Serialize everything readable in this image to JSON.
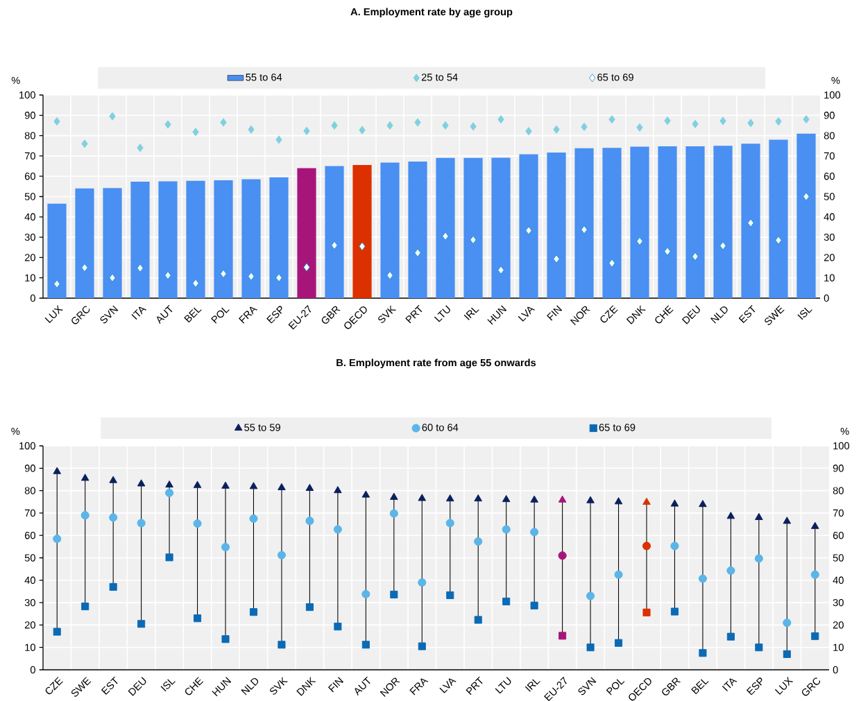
{
  "chart_data": [
    {
      "type": "bar",
      "title": "A. Employment rate by age group",
      "ylabel": "%",
      "y2label": "%",
      "categories": [
        "LUX",
        "GRC",
        "SVN",
        "ITA",
        "AUT",
        "BEL",
        "POL",
        "FRA",
        "ESP",
        "EU-27",
        "GBR",
        "OECD",
        "SVK",
        "PRT",
        "LTU",
        "IRL",
        "HUN",
        "LVA",
        "FIN",
        "NOR",
        "CZE",
        "DNK",
        "CHE",
        "DEU",
        "NLD",
        "EST",
        "SWE",
        "ISL"
      ],
      "series": [
        {
          "name": "55 to 64",
          "type": "bar",
          "color": "#4a8ff2",
          "colors": [
            "#4a8ff2",
            "#4a8ff2",
            "#4a8ff2",
            "#4a8ff2",
            "#4a8ff2",
            "#4a8ff2",
            "#4a8ff2",
            "#4a8ff2",
            "#4a8ff2",
            "#a8157a",
            "#4a8ff2",
            "#dc3000",
            "#4a8ff2",
            "#4a8ff2",
            "#4a8ff2",
            "#4a8ff2",
            "#4a8ff2",
            "#4a8ff2",
            "#4a8ff2",
            "#4a8ff2",
            "#4a8ff2",
            "#4a8ff2",
            "#4a8ff2",
            "#4a8ff2",
            "#4a8ff2",
            "#4a8ff2",
            "#4a8ff2",
            "#4a8ff2"
          ],
          "values": [
            46.5,
            54,
            54.2,
            57.3,
            57.5,
            57.8,
            58,
            58.5,
            59.5,
            64,
            65,
            65.5,
            66.7,
            67.2,
            69,
            69,
            69.1,
            70.8,
            71.7,
            73.8,
            74,
            74.6,
            74.7,
            74.7,
            75,
            76,
            78,
            81
          ]
        },
        {
          "name": "25 to 54",
          "type": "scatter",
          "marker": "diamond",
          "color": "#7fd0e0",
          "values": [
            87,
            76,
            89.5,
            74,
            85.5,
            81.8,
            86.5,
            83,
            78,
            82.3,
            85,
            82.7,
            85,
            86.5,
            85,
            84.5,
            88,
            82.2,
            83,
            84.3,
            88,
            84,
            87.3,
            85.7,
            87.2,
            86.2,
            87,
            88
          ]
        },
        {
          "name": "65 to 69",
          "type": "scatter",
          "marker": "diamond",
          "color": "#ffffff",
          "values": [
            7,
            15,
            10,
            14.8,
            11.2,
            7.3,
            12,
            10.7,
            10,
            15.2,
            26,
            25.5,
            11.2,
            22.3,
            30.5,
            28.7,
            13.8,
            33.3,
            19.3,
            33.7,
            17.2,
            28,
            23,
            20.5,
            25.8,
            37,
            28.5,
            50
          ]
        }
      ],
      "ylim": [
        0,
        100
      ],
      "yticks": [
        0,
        10,
        20,
        30,
        40,
        50,
        60,
        70,
        80,
        90,
        100
      ],
      "y2lim": [
        0,
        100
      ],
      "y2ticks": [
        0,
        10,
        20,
        30,
        40,
        50,
        60,
        70,
        80,
        90,
        100
      ],
      "grid": true,
      "legend": "top"
    },
    {
      "type": "scatter",
      "title": "B. Employment rate from age 55 onwards",
      "ylabel": "%",
      "y2label": "%",
      "categories": [
        "CZE",
        "SWE",
        "EST",
        "DEU",
        "ISL",
        "CHE",
        "HUN",
        "NLD",
        "SVK",
        "DNK",
        "FIN",
        "AUT",
        "NOR",
        "FRA",
        "LVA",
        "PRT",
        "LTU",
        "IRL",
        "EU-27",
        "SVN",
        "POL",
        "OECD",
        "GBR",
        "BEL",
        "ITA",
        "ESP",
        "LUX",
        "GRC"
      ],
      "series": [
        {
          "name": "55 to 59",
          "marker": "triangle",
          "color": "#0b1f5c",
          "colors": [
            "#0b1f5c",
            "#0b1f5c",
            "#0b1f5c",
            "#0b1f5c",
            "#0b1f5c",
            "#0b1f5c",
            "#0b1f5c",
            "#0b1f5c",
            "#0b1f5c",
            "#0b1f5c",
            "#0b1f5c",
            "#0b1f5c",
            "#0b1f5c",
            "#0b1f5c",
            "#0b1f5c",
            "#0b1f5c",
            "#0b1f5c",
            "#0b1f5c",
            "#a8157a",
            "#0b1f5c",
            "#0b1f5c",
            "#dc3000",
            "#0b1f5c",
            "#0b1f5c",
            "#0b1f5c",
            "#0b1f5c",
            "#0b1f5c",
            "#0b1f5c"
          ],
          "values": [
            88.5,
            85.5,
            84.5,
            83,
            82.5,
            82.3,
            82,
            81.8,
            81.3,
            81,
            80,
            78,
            77,
            76.5,
            76.3,
            76.3,
            76,
            75.8,
            75.8,
            75.5,
            75,
            74.8,
            74,
            73.8,
            68.5,
            68,
            66.3,
            64
          ]
        },
        {
          "name": "60 to 64",
          "marker": "circle",
          "color": "#5bb5e8",
          "colors": [
            "#5bb5e8",
            "#5bb5e8",
            "#5bb5e8",
            "#5bb5e8",
            "#5bb5e8",
            "#5bb5e8",
            "#5bb5e8",
            "#5bb5e8",
            "#5bb5e8",
            "#5bb5e8",
            "#5bb5e8",
            "#5bb5e8",
            "#5bb5e8",
            "#5bb5e8",
            "#5bb5e8",
            "#5bb5e8",
            "#5bb5e8",
            "#5bb5e8",
            "#a8157a",
            "#5bb5e8",
            "#5bb5e8",
            "#dc3000",
            "#5bb5e8",
            "#5bb5e8",
            "#5bb5e8",
            "#5bb5e8",
            "#5bb5e8",
            "#5bb5e8"
          ],
          "values": [
            58.5,
            69,
            68,
            65.5,
            79,
            65.3,
            54.8,
            67.5,
            51.2,
            66.5,
            62.7,
            33.8,
            69.8,
            39,
            65.5,
            57.3,
            62.7,
            61.5,
            51,
            33,
            42.5,
            55.3,
            55.3,
            40.7,
            44.3,
            49.7,
            21,
            42.5
          ]
        },
        {
          "name": "65 to 69",
          "marker": "square",
          "color": "#0a6ab5",
          "colors": [
            "#0a6ab5",
            "#0a6ab5",
            "#0a6ab5",
            "#0a6ab5",
            "#0a6ab5",
            "#0a6ab5",
            "#0a6ab5",
            "#0a6ab5",
            "#0a6ab5",
            "#0a6ab5",
            "#0a6ab5",
            "#0a6ab5",
            "#0a6ab5",
            "#0a6ab5",
            "#0a6ab5",
            "#0a6ab5",
            "#0a6ab5",
            "#0a6ab5",
            "#a8157a",
            "#0a6ab5",
            "#0a6ab5",
            "#dc3000",
            "#0a6ab5",
            "#0a6ab5",
            "#0a6ab5",
            "#0a6ab5",
            "#0a6ab5",
            "#0a6ab5"
          ],
          "values": [
            17,
            28.3,
            37,
            20.5,
            50.2,
            23,
            13.7,
            25.8,
            11.2,
            28,
            19.3,
            11.2,
            33.6,
            10.5,
            33.3,
            22.3,
            30.5,
            28.7,
            15.2,
            10,
            12,
            25.6,
            26,
            7.5,
            14.8,
            10,
            7,
            15
          ]
        }
      ],
      "ylim": [
        0,
        100
      ],
      "yticks": [
        0,
        10,
        20,
        30,
        40,
        50,
        60,
        70,
        80,
        90,
        100
      ],
      "y2lim": [
        0,
        100
      ],
      "y2ticks": [
        0,
        10,
        20,
        30,
        40,
        50,
        60,
        70,
        80,
        90,
        100
      ],
      "grid": true,
      "legend": "top"
    }
  ]
}
